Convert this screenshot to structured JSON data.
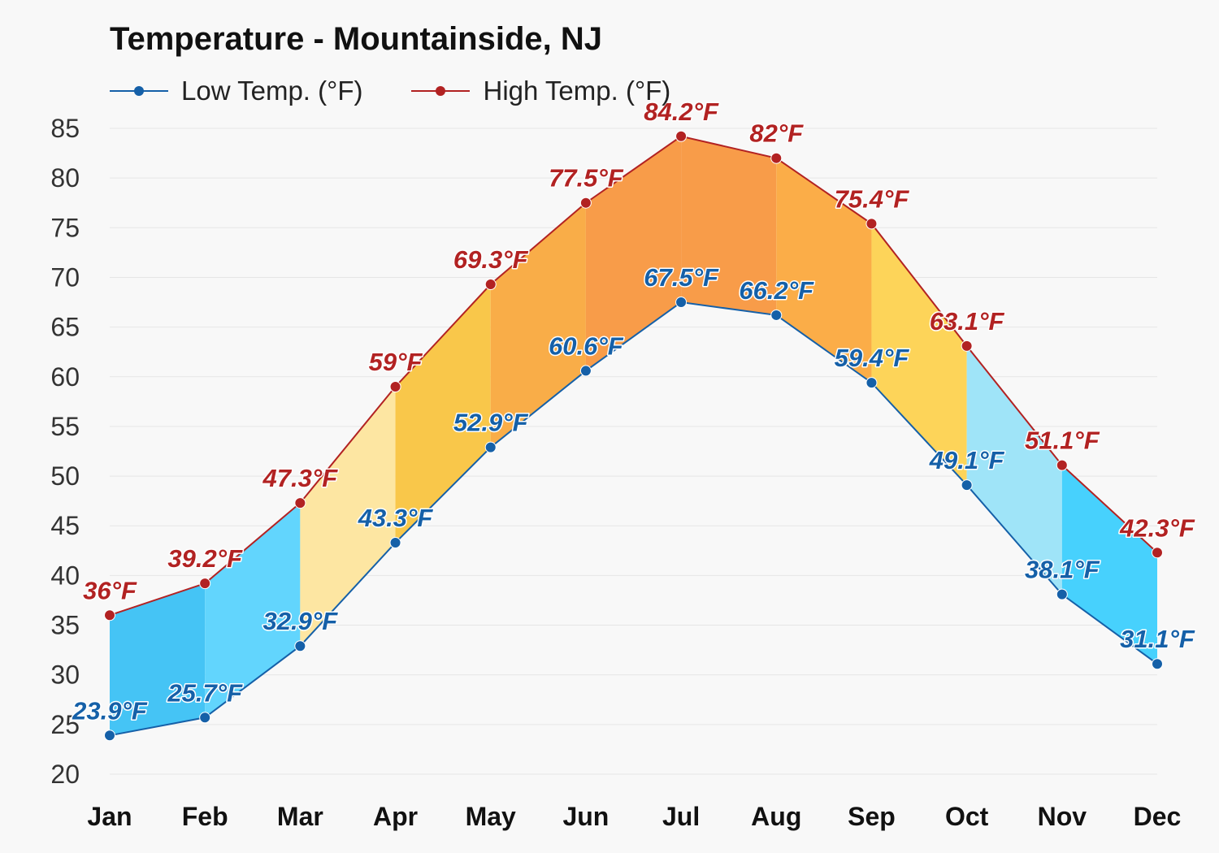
{
  "chart_data": {
    "type": "area",
    "title": "Temperature - Mountainside, NJ",
    "categories": [
      "Jan",
      "Feb",
      "Mar",
      "Apr",
      "May",
      "Jun",
      "Jul",
      "Aug",
      "Sep",
      "Oct",
      "Nov",
      "Dec"
    ],
    "series": [
      {
        "name": "Low Temp. (°F)",
        "color": "#1560a8",
        "values": [
          23.9,
          25.7,
          32.9,
          43.3,
          52.9,
          60.6,
          67.5,
          66.2,
          59.4,
          49.1,
          38.1,
          31.1
        ],
        "labels": [
          "23.9°F",
          "25.7°F",
          "32.9°F",
          "43.3°F",
          "52.9°F",
          "60.6°F",
          "67.5°F",
          "66.2°F",
          "59.4°F",
          "49.1°F",
          "38.1°F",
          "31.1°F"
        ]
      },
      {
        "name": "High Temp. (°F)",
        "color": "#b22222",
        "values": [
          36,
          39.2,
          47.3,
          59,
          69.3,
          77.5,
          84.2,
          82,
          75.4,
          63.1,
          51.1,
          42.3
        ],
        "labels": [
          "36°F",
          "39.2°F",
          "47.3°F",
          "59°F",
          "69.3°F",
          "77.5°F",
          "84.2°F",
          "82°F",
          "75.4°F",
          "63.1°F",
          "51.1°F",
          "42.3°F"
        ]
      }
    ],
    "band_colors": [
      "#45c4f5",
      "#62d5fd",
      "#fde6a2",
      "#f9c74a",
      "#f9ad48",
      "#f89c49",
      "#f89c49",
      "#fbad48",
      "#fdd459",
      "#9fe4f8",
      "#47d1fd",
      "#47d1fd"
    ],
    "ylim": [
      20,
      85
    ],
    "yticks": [
      20,
      25,
      30,
      35,
      40,
      45,
      50,
      55,
      60,
      65,
      70,
      75,
      80,
      85
    ],
    "ytick_labels": [
      "20",
      "25",
      "30",
      "35",
      "40",
      "45",
      "50",
      "55",
      "60",
      "65",
      "70",
      "75",
      "80",
      "85"
    ],
    "grid": true,
    "legend_position": "top-left"
  }
}
